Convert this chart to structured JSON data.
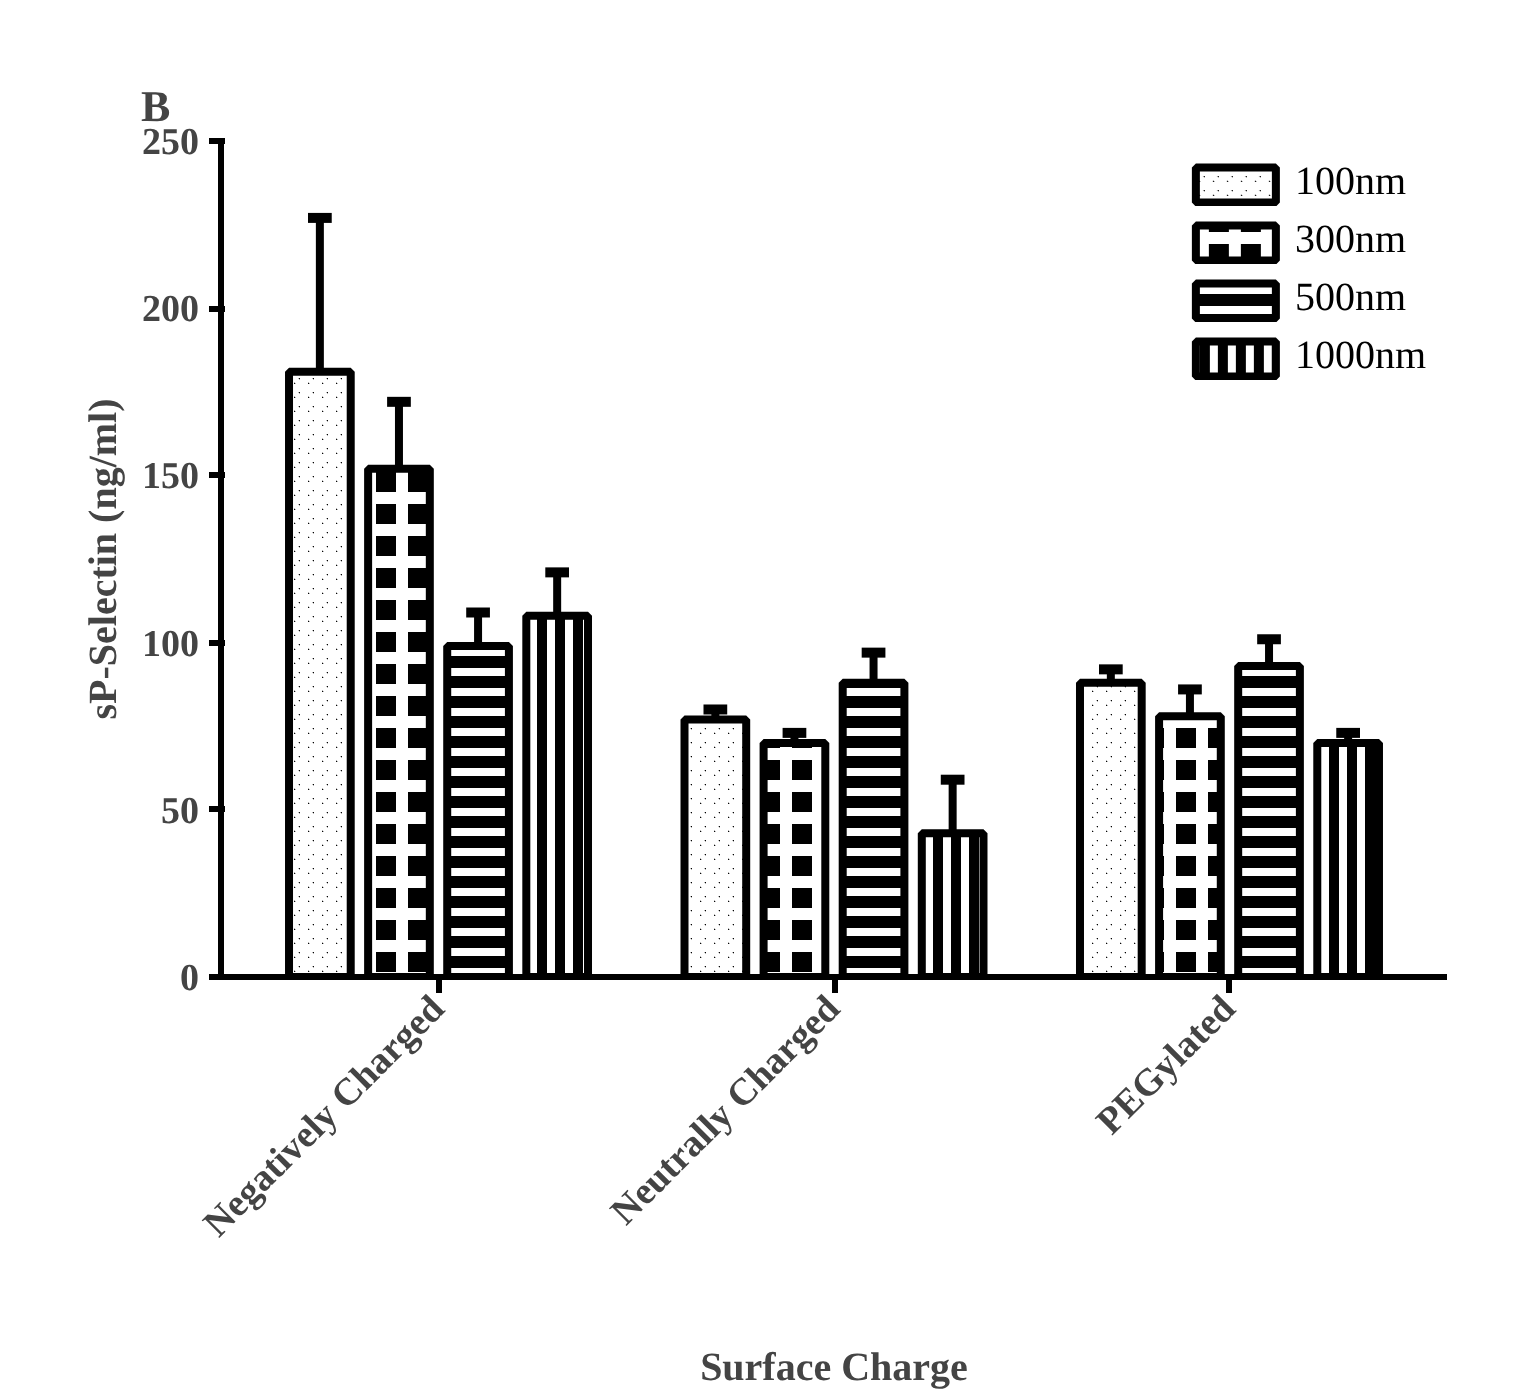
{
  "chart_data": {
    "type": "bar",
    "title": "B",
    "xlabel": "Surface Charge",
    "ylabel": "sP-Selectin (ng/ml)",
    "categories": [
      "Negatively Charged",
      "Neutrally Charged",
      "PEGylated"
    ],
    "series": [
      {
        "name": "100nm",
        "color": "#000000",
        "values": [
          181,
          77,
          88
        ],
        "errors": [
          [
            181,
            227
          ],
          [
            77,
            80
          ],
          [
            88,
            92
          ]
        ]
      },
      {
        "name": "300nm",
        "color": "#000000",
        "values": [
          152,
          70,
          78
        ],
        "errors": [
          [
            152,
            172
          ],
          [
            70,
            73
          ],
          [
            78,
            86
          ]
        ]
      },
      {
        "name": "500nm",
        "color": "#000000",
        "values": [
          99,
          88,
          93
        ],
        "errors": [
          [
            99,
            109
          ],
          [
            88,
            97
          ],
          [
            93,
            101
          ]
        ]
      },
      {
        "name": "1000nm",
        "color": "#000000",
        "values": [
          108,
          43,
          70
        ],
        "errors": [
          [
            108,
            121
          ],
          [
            43,
            59
          ],
          [
            70,
            73
          ]
        ]
      }
    ],
    "ylim": [
      0,
      250
    ],
    "yticks": [
      0,
      50,
      100,
      150,
      200,
      250
    ],
    "grid": false,
    "legend": "top right"
  }
}
